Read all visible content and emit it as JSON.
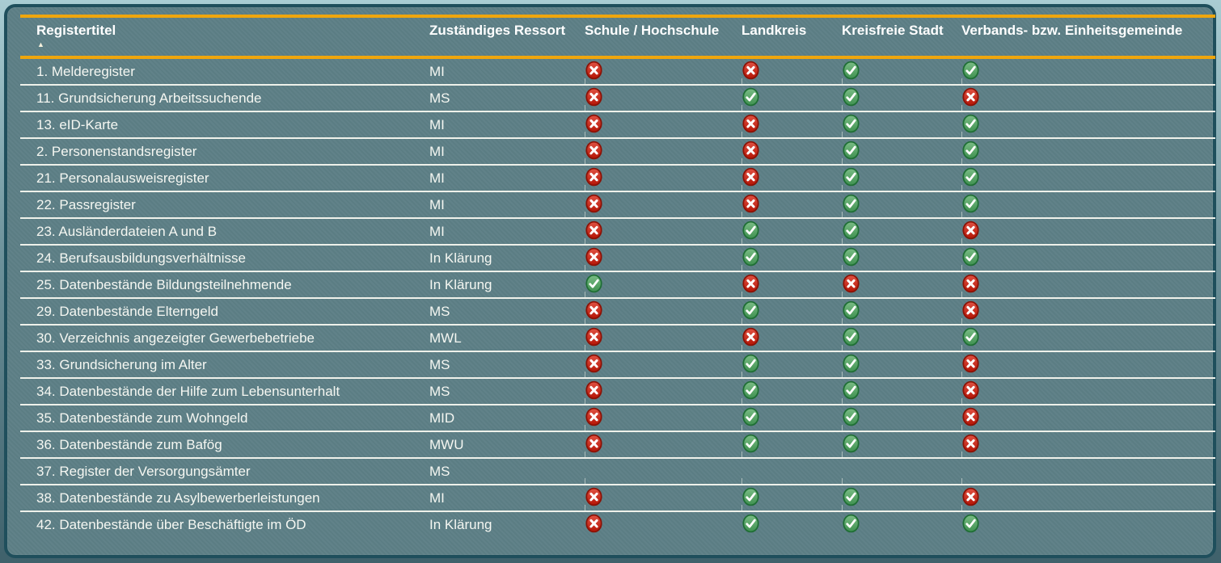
{
  "colors": {
    "panel_background": "#5d7f86",
    "panel_border": "#1f4f5c",
    "accent_rule_orange": "#efa60d",
    "row_divider": "#eef1ea",
    "header_text": "#ffffff",
    "row_text": "#f5f7f2",
    "check_green": "#57a564",
    "check_green_border": "#1f6e35",
    "cross_red": "#cd2b1d",
    "cross_red_border": "#8a1206",
    "icon_glyph": "#ffffff"
  },
  "table": {
    "sort_icon": "▲",
    "sorted_column": "Registertitel",
    "sort_direction": "ascending",
    "columns": [
      {
        "key": "title",
        "label": "Registertitel"
      },
      {
        "key": "ressort",
        "label": "Zuständiges Ressort"
      },
      {
        "key": "schule",
        "label": "Schule / Hochschule"
      },
      {
        "key": "landkreis",
        "label": "Landkreis"
      },
      {
        "key": "kreisfreie_stadt",
        "label": "Kreisfreie Stadt"
      },
      {
        "key": "verbandsgemeinde",
        "label": "Verbands- bzw. Einheitsgemeinde"
      }
    ],
    "icon_legend": {
      "yes": "check-icon (green)",
      "no": "cross-icon (red)",
      "": "empty"
    },
    "rows": [
      {
        "title": "1. Melderegister",
        "ressort": "MI",
        "schule": "no",
        "landkreis": "no",
        "kreisfreie_stadt": "yes",
        "verbandsgemeinde": "yes"
      },
      {
        "title": "11. Grundsicherung Arbeitssuchende",
        "ressort": "MS",
        "schule": "no",
        "landkreis": "yes",
        "kreisfreie_stadt": "yes",
        "verbandsgemeinde": "no"
      },
      {
        "title": "13. eID-Karte",
        "ressort": "MI",
        "schule": "no",
        "landkreis": "no",
        "kreisfreie_stadt": "yes",
        "verbandsgemeinde": "yes"
      },
      {
        "title": "2. Personenstandsregister",
        "ressort": "MI",
        "schule": "no",
        "landkreis": "no",
        "kreisfreie_stadt": "yes",
        "verbandsgemeinde": "yes"
      },
      {
        "title": "21. Personalausweisregister",
        "ressort": "MI",
        "schule": "no",
        "landkreis": "no",
        "kreisfreie_stadt": "yes",
        "verbandsgemeinde": "yes"
      },
      {
        "title": "22. Passregister",
        "ressort": "MI",
        "schule": "no",
        "landkreis": "no",
        "kreisfreie_stadt": "yes",
        "verbandsgemeinde": "yes"
      },
      {
        "title": "23. Ausländerdateien A und B",
        "ressort": "MI",
        "schule": "no",
        "landkreis": "yes",
        "kreisfreie_stadt": "yes",
        "verbandsgemeinde": "no"
      },
      {
        "title": "24. Berufsausbildungsverhältnisse",
        "ressort": "In Klärung",
        "schule": "no",
        "landkreis": "yes",
        "kreisfreie_stadt": "yes",
        "verbandsgemeinde": "yes"
      },
      {
        "title": "25. Datenbestände Bildungsteilnehmende",
        "ressort": "In Klärung",
        "schule": "yes",
        "landkreis": "no",
        "kreisfreie_stadt": "no",
        "verbandsgemeinde": "no"
      },
      {
        "title": "29. Datenbestände Elterngeld",
        "ressort": "MS",
        "schule": "no",
        "landkreis": "yes",
        "kreisfreie_stadt": "yes",
        "verbandsgemeinde": "no"
      },
      {
        "title": "30. Verzeichnis angezeigter Gewerbebetriebe",
        "ressort": "MWL",
        "schule": "no",
        "landkreis": "no",
        "kreisfreie_stadt": "yes",
        "verbandsgemeinde": "yes"
      },
      {
        "title": "33. Grundsicherung im Alter",
        "ressort": "MS",
        "schule": "no",
        "landkreis": "yes",
        "kreisfreie_stadt": "yes",
        "verbandsgemeinde": "no"
      },
      {
        "title": "34. Datenbestände der Hilfe zum Lebensunterhalt",
        "ressort": "MS",
        "schule": "no",
        "landkreis": "yes",
        "kreisfreie_stadt": "yes",
        "verbandsgemeinde": "no"
      },
      {
        "title": "35. Datenbestände zum Wohngeld",
        "ressort": "MID",
        "schule": "no",
        "landkreis": "yes",
        "kreisfreie_stadt": "yes",
        "verbandsgemeinde": "no"
      },
      {
        "title": "36. Datenbestände zum Bafög",
        "ressort": "MWU",
        "schule": "no",
        "landkreis": "yes",
        "kreisfreie_stadt": "yes",
        "verbandsgemeinde": "no"
      },
      {
        "title": "37. Register der Versorgungsämter",
        "ressort": "MS",
        "schule": "",
        "landkreis": "",
        "kreisfreie_stadt": "",
        "verbandsgemeinde": ""
      },
      {
        "title": "38. Datenbestände zu Asylbewerberleistungen",
        "ressort": "MI",
        "schule": "no",
        "landkreis": "yes",
        "kreisfreie_stadt": "yes",
        "verbandsgemeinde": "no"
      },
      {
        "title": "42. Datenbestände über Beschäftigte im ÖD",
        "ressort": "In Klärung",
        "schule": "no",
        "landkreis": "yes",
        "kreisfreie_stadt": "yes",
        "verbandsgemeinde": "yes"
      }
    ]
  }
}
